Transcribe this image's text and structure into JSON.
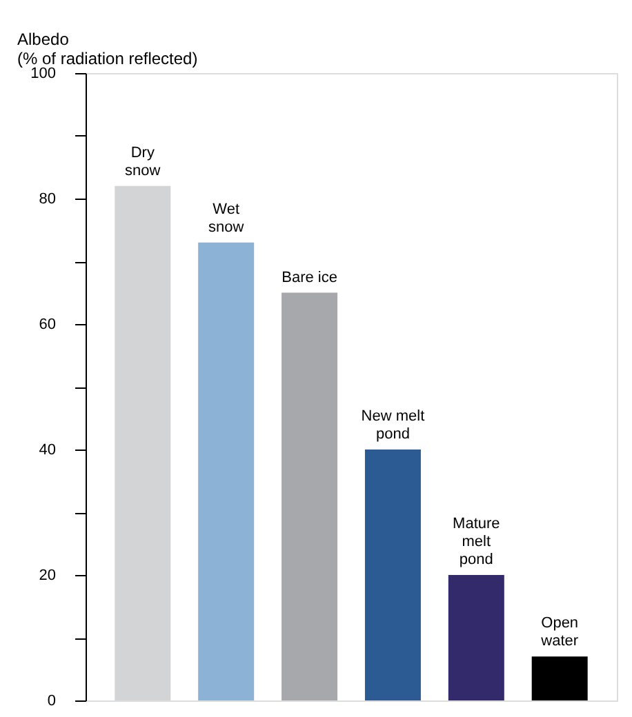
{
  "chart_data": {
    "type": "bar",
    "ylabel": "Albedo\n(% of radiation reflected)",
    "categories": [
      "Dry\nsnow",
      "Wet\nsnow",
      "Bare ice",
      "New melt\npond",
      "Mature\nmelt\npond",
      "Open\nwater"
    ],
    "values": [
      82,
      73,
      65,
      40,
      20,
      7
    ],
    "colors": [
      "#d3d4d6",
      "#8cb2d6",
      "#a7a8ab",
      "#2c5a93",
      "#322a6b",
      "#000000"
    ],
    "ylim": [
      0,
      100
    ],
    "yticks": [
      0,
      {
        "value": 10,
        "label": null
      },
      20,
      {
        "value": 30,
        "label": null
      },
      40,
      {
        "value": 50,
        "label": null
      },
      60,
      {
        "value": 70,
        "label": null
      },
      80,
      {
        "value": 90,
        "label": null
      },
      100
    ],
    "grid": false
  }
}
